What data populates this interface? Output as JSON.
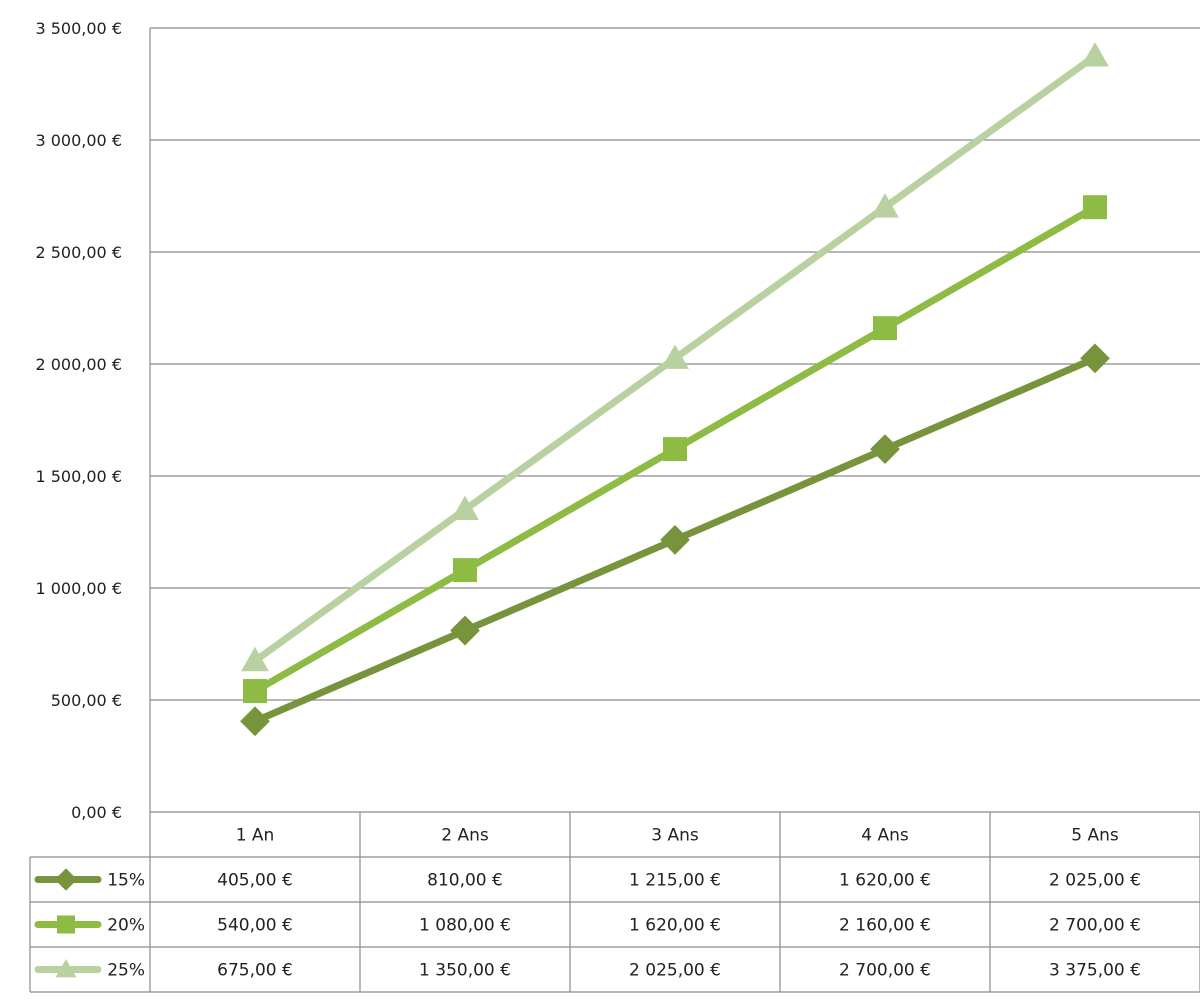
{
  "chart_data": {
    "type": "line",
    "categories": [
      "1 An",
      "2 Ans",
      "3 Ans",
      "4 Ans",
      "5 Ans"
    ],
    "series": [
      {
        "name": "15%",
        "values": [
          405,
          810,
          1215,
          1620,
          2025
        ],
        "labels": [
          "405,00 €",
          "810,00 €",
          "1 215,00 €",
          "1 620,00 €",
          "2 025,00 €"
        ],
        "color": "#77933c",
        "marker": "diamond"
      },
      {
        "name": "20%",
        "values": [
          540,
          1080,
          1620,
          2160,
          2700
        ],
        "labels": [
          "540,00 €",
          "1 080,00 €",
          "1 620,00 €",
          "2 160,00 €",
          "2 700,00 €"
        ],
        "color": "#8dbb44",
        "marker": "square"
      },
      {
        "name": "25%",
        "values": [
          675,
          1350,
          2025,
          2700,
          3375
        ],
        "labels": [
          "675,00 €",
          "1 350,00 €",
          "2 025,00 €",
          "2 700,00 €",
          "3 375,00 €"
        ],
        "color": "#b9d1a0",
        "marker": "triangle"
      }
    ],
    "ylim": [
      0,
      3500
    ],
    "y_ticks": [
      0,
      500,
      1000,
      1500,
      2000,
      2500,
      3000,
      3500
    ],
    "y_tick_labels": [
      "0,00 €",
      "500,00 €",
      "1 000,00 €",
      "1 500,00 €",
      "2 000,00 €",
      "2 500,00 €",
      "3 000,00 €",
      "3 500,00 €"
    ],
    "grid": true,
    "legend": "data-table-left"
  }
}
